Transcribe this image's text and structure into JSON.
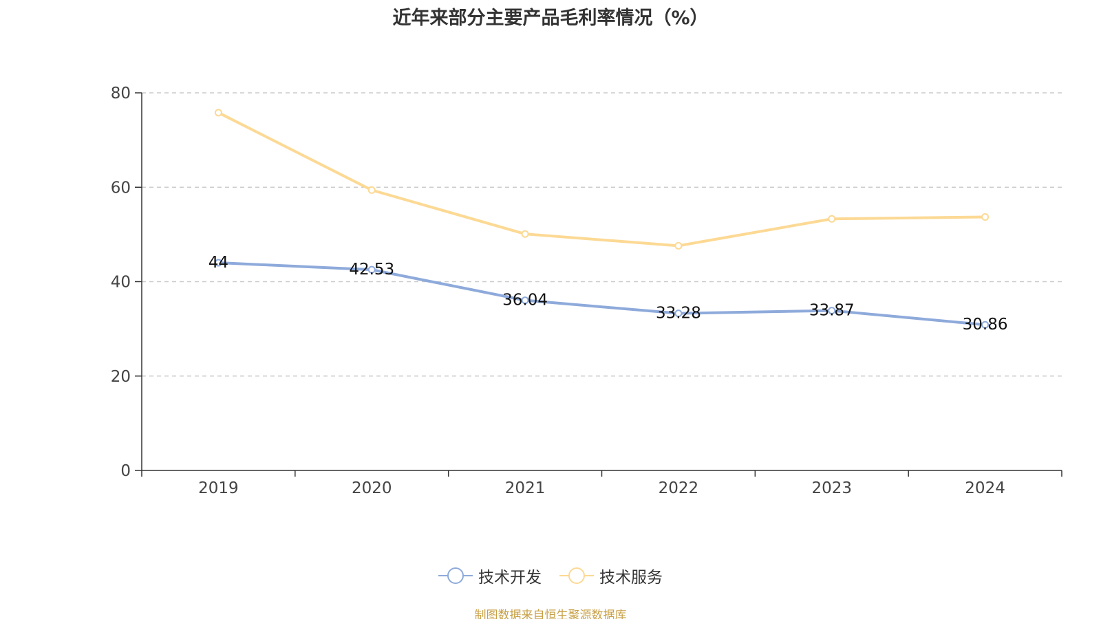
{
  "chart_data": {
    "type": "line",
    "title": "近年来部分主要产品毛利率情况（%）",
    "categories": [
      "2019",
      "2020",
      "2021",
      "2022",
      "2023",
      "2024"
    ],
    "ylim": [
      0,
      80
    ],
    "yticks": [
      0,
      20,
      40,
      60,
      80
    ],
    "grid": "horizontal-dashed",
    "legend_position": "bottom-center",
    "series": [
      {
        "name": "技术开发",
        "values": [
          44,
          42.53,
          36.04,
          33.28,
          33.87,
          30.86
        ],
        "labels": [
          "44",
          "42.53",
          "36.04",
          "33.28",
          "33.87",
          "30.86"
        ],
        "color": "#8eaadb"
      },
      {
        "name": "技术服务",
        "values": [
          75.8,
          59.4,
          50.1,
          47.6,
          53.3,
          53.7
        ],
        "labels": [],
        "color": "#fcd994"
      }
    ]
  },
  "source_note": "制图数据来自恒生聚源数据库"
}
